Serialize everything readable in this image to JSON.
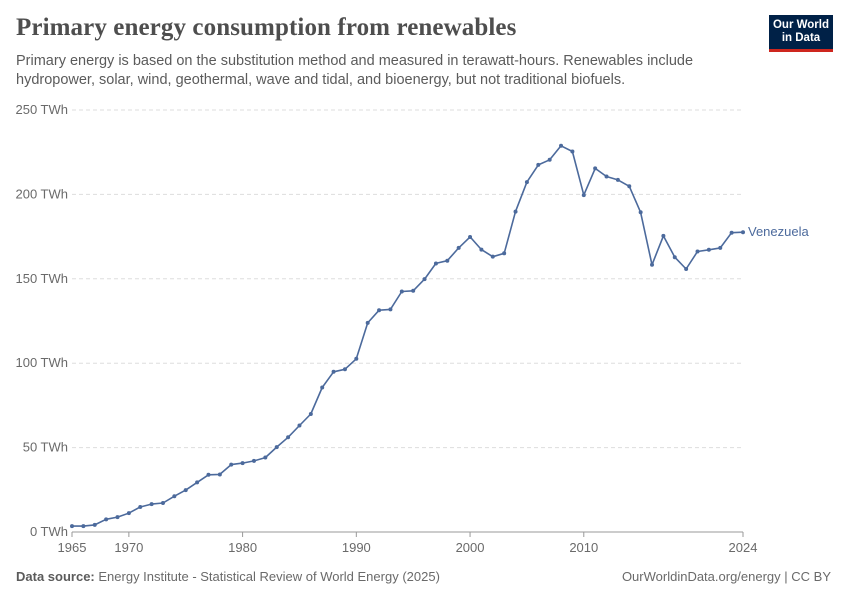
{
  "header": {
    "title": "Primary energy consumption from renewables",
    "subtitle": "Primary energy is based on the substitution method and measured in terawatt-hours. Renewables include hydropower, solar, wind, geothermal, wave and tidal, and bioenergy, but not traditional biofuels.",
    "logo_line1": "Our World",
    "logo_line2": "in Data"
  },
  "footer": {
    "source_label": "Data source:",
    "source_text": "Energy Institute - Statistical Review of World Energy (2025)",
    "credit": "OurWorldinData.org/energy | CC BY"
  },
  "colors": {
    "series": "#4c6a9c",
    "grid": "#dddddd",
    "axis": "#999999"
  },
  "chart_data": {
    "type": "line",
    "title": "Primary energy consumption from renewables",
    "xlim": [
      1965,
      2024
    ],
    "ylim": [
      0,
      250
    ],
    "grid": "horizontal dashed",
    "y_ticks": [
      {
        "value": 0,
        "label": "0 TWh"
      },
      {
        "value": 50,
        "label": "50 TWh"
      },
      {
        "value": 100,
        "label": "100 TWh"
      },
      {
        "value": 150,
        "label": "150 TWh"
      },
      {
        "value": 200,
        "label": "200 TWh"
      },
      {
        "value": 250,
        "label": "250 TWh"
      }
    ],
    "x_ticks": [
      {
        "value": 1965,
        "label": "1965"
      },
      {
        "value": 1970,
        "label": "1970"
      },
      {
        "value": 1980,
        "label": "1980"
      },
      {
        "value": 1990,
        "label": "1990"
      },
      {
        "value": 2000,
        "label": "2000"
      },
      {
        "value": 2010,
        "label": "2010"
      },
      {
        "value": 2024,
        "label": "2024"
      }
    ],
    "series": [
      {
        "name": "Venezuela",
        "x": [
          1965,
          1966,
          1967,
          1968,
          1969,
          1970,
          1971,
          1972,
          1973,
          1974,
          1975,
          1976,
          1977,
          1978,
          1979,
          1980,
          1981,
          1982,
          1983,
          1984,
          1985,
          1986,
          1987,
          1988,
          1989,
          1990,
          1991,
          1992,
          1993,
          1994,
          1995,
          1996,
          1997,
          1998,
          1999,
          2000,
          2001,
          2002,
          2003,
          2004,
          2005,
          2006,
          2007,
          2008,
          2009,
          2010,
          2011,
          2012,
          2013,
          2014,
          2015,
          2016,
          2017,
          2018,
          2019,
          2020,
          2021,
          2022,
          2023,
          2024
        ],
        "y": [
          3.5,
          3.5,
          4.2,
          7.5,
          8.8,
          11.2,
          14.8,
          16.5,
          17.2,
          21.2,
          24.8,
          29.4,
          33.9,
          34.1,
          39.9,
          40.8,
          42.1,
          44.1,
          50.3,
          56.1,
          63.1,
          69.9,
          85.6,
          94.9,
          96.4,
          102.6,
          123.9,
          131.4,
          131.9,
          142.5,
          142.9,
          149.8,
          159.1,
          160.7,
          168.3,
          174.8,
          167.3,
          163.1,
          165.1,
          189.8,
          207.3,
          217.5,
          220.5,
          228.8,
          225.4,
          199.6,
          215.4,
          210.6,
          208.6,
          204.8,
          189.4,
          158.3,
          175.4,
          162.8,
          155.8,
          166.2,
          167.2,
          168.3,
          177.3,
          177.6
        ]
      }
    ]
  }
}
